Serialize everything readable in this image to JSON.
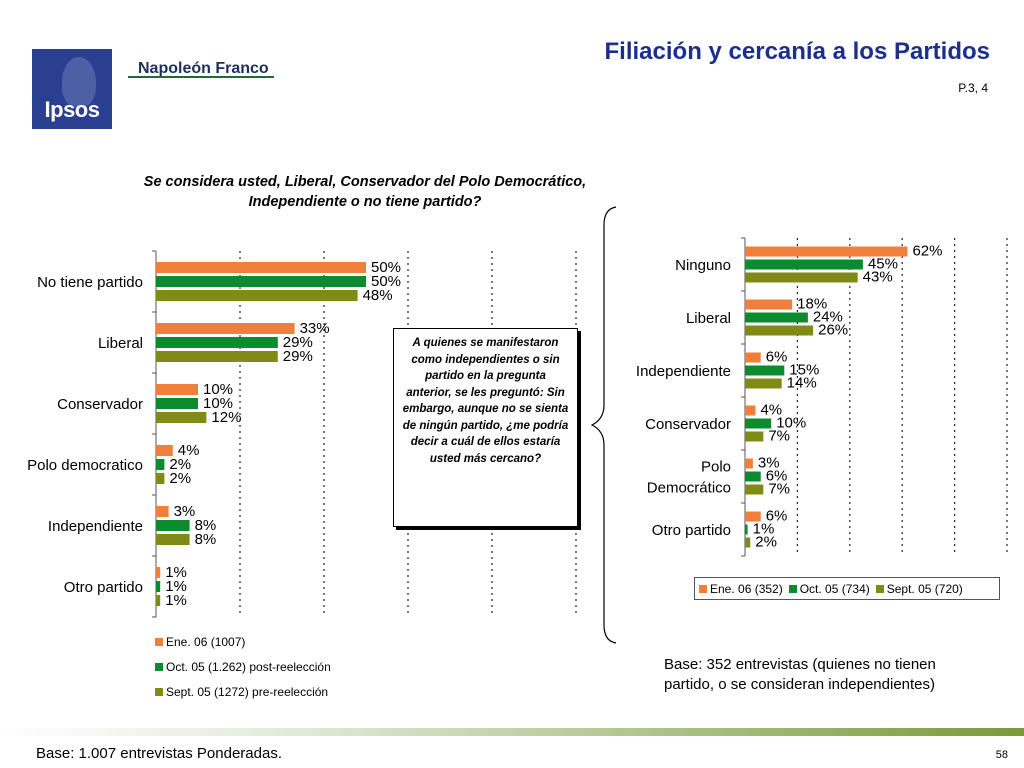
{
  "header": {
    "title": "Filiación y cercanía a los Partidos",
    "page_ref": "P.3, 4",
    "logo_text": "Ipsos",
    "brand": "Napoleón Franco"
  },
  "question": "Se considera usted, Liberal, Conservador del Polo Democrático, Independiente o no tiene partido?",
  "callout": "A quienes se manifestaron como independientes o sin partido en la pregunta anterior, se les preguntó: Sin embargo, aunque no se sienta de ningún partido, ¿me podría decir a cuál de ellos estaría usted más cercano?",
  "footer": {
    "base_left": "Base:  1.007 entrevistas Ponderadas.",
    "base_right": "Base: 352 entrevistas (quienes no tienen partido, o se consideran independientes)",
    "page_number": "58"
  },
  "colors": {
    "orange": "#f07f3c",
    "green": "#0b8a2e",
    "olive": "#7f8b16",
    "title_blue": "#1d2f8c"
  },
  "chart_data": [
    {
      "type": "bar",
      "orientation": "horizontal",
      "categories": [
        "No tiene partido",
        "Liberal",
        "Conservador",
        "Polo democratico",
        "Independiente",
        "Otro partido"
      ],
      "series": [
        {
          "name": "Ene. 06 (1007)",
          "values": [
            50,
            33,
            10,
            4,
            3,
            1
          ],
          "color": "#f07f3c"
        },
        {
          "name": "Oct. 05 (1.262) post-reelección",
          "values": [
            50,
            29,
            10,
            2,
            8,
            1
          ],
          "color": "#0b8a2e"
        },
        {
          "name": "Sept. 05 (1272) pre-reelección",
          "values": [
            48,
            29,
            12,
            2,
            8,
            1
          ],
          "color": "#7f8b16"
        }
      ],
      "value_format": "%",
      "xlim": [
        0,
        100
      ],
      "grid": "vertical dotted",
      "legend": "bottom"
    },
    {
      "type": "bar",
      "orientation": "horizontal",
      "categories": [
        "Ninguno",
        "Liberal",
        "Independiente",
        "Conservador",
        "Polo Democrático",
        "Otro partido"
      ],
      "series": [
        {
          "name": "Ene. 06 (352)",
          "values": [
            62,
            18,
            6,
            4,
            3,
            6
          ],
          "color": "#f07f3c"
        },
        {
          "name": "Oct. 05 (734)",
          "values": [
            45,
            24,
            15,
            10,
            6,
            1
          ],
          "color": "#0b8a2e"
        },
        {
          "name": "Sept. 05 (720)",
          "values": [
            43,
            26,
            14,
            7,
            7,
            2
          ],
          "color": "#7f8b16"
        }
      ],
      "value_format": "%",
      "xlim": [
        0,
        100
      ],
      "grid": "vertical dotted",
      "legend": "bottom"
    }
  ]
}
